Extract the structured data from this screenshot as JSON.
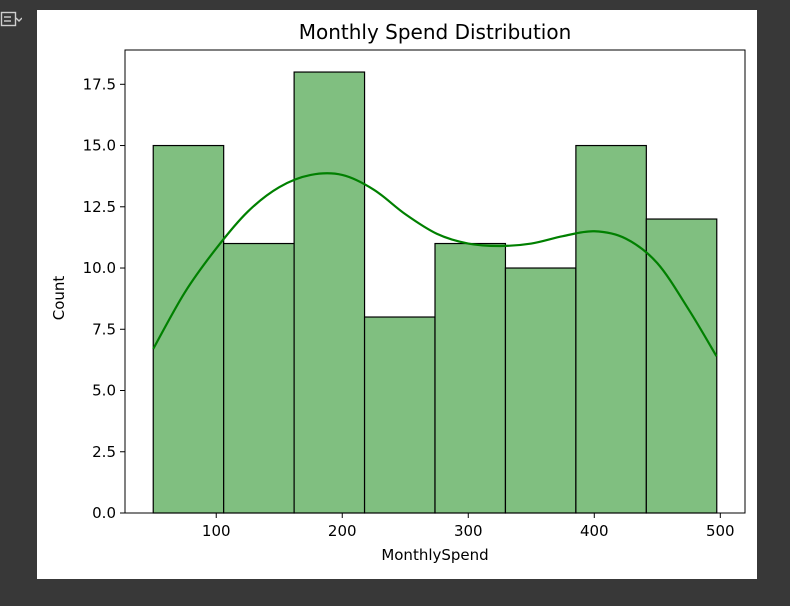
{
  "chart_data": {
    "type": "bar",
    "title": "Monthly Spend Distribution",
    "xlabel": "MonthlySpend",
    "ylabel": "Count",
    "bin_edges": [
      50,
      105.9,
      161.8,
      217.7,
      273.6,
      329.5,
      385.4,
      441.3,
      497.2
    ],
    "values": [
      15,
      11,
      18,
      8,
      11,
      10,
      15,
      12
    ],
    "xlim": [
      27.6,
      519.6
    ],
    "ylim": [
      0,
      18.9
    ],
    "xticks": [
      100,
      200,
      300,
      400,
      500
    ],
    "yticks": [
      0.0,
      2.5,
      5.0,
      7.5,
      10.0,
      12.5,
      15.0,
      17.5
    ],
    "ytick_labels": [
      "0.0",
      "2.5",
      "5.0",
      "7.5",
      "10.0",
      "12.5",
      "15.0",
      "17.5"
    ],
    "kde": {
      "x": [
        50,
        75,
        100,
        125,
        150,
        175,
        200,
        225,
        250,
        275,
        300,
        325,
        350,
        375,
        400,
        425,
        450,
        475,
        497
      ],
      "y": [
        6.7,
        9.0,
        10.8,
        12.3,
        13.3,
        13.8,
        13.8,
        13.2,
        12.2,
        11.4,
        11.0,
        10.9,
        11.0,
        11.3,
        11.5,
        11.2,
        10.2,
        8.3,
        6.4
      ]
    },
    "bar_color": "#80bf80",
    "kde_color": "#008000",
    "grid": false
  }
}
